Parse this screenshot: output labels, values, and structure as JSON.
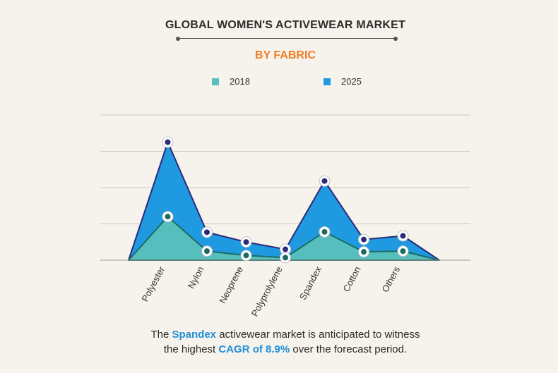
{
  "colors": {
    "series_2018": "#56bfbe",
    "series_2025": "#1f9ae0",
    "line_2018": "#1b6b62",
    "line_2025": "#2c2a7a",
    "title": "#2c2c2c",
    "subtitle": "#ef7c22",
    "highlight": "#1f8fd8"
  },
  "chart_data": {
    "type": "area",
    "title": "GLOBAL WOMEN'S ACTIVEWEAR MARKET",
    "subtitle": "BY FABRIC",
    "categories": [
      "Polyester",
      "Nylon",
      "Neoprene",
      "Polyprolylene",
      "Spandex",
      "Cotton",
      "Others"
    ],
    "series": [
      {
        "name": "2018",
        "values": [
          1.2,
          0.25,
          0.13,
          0.07,
          0.78,
          0.23,
          0.25
        ]
      },
      {
        "name": "2025",
        "values": [
          3.25,
          0.77,
          0.5,
          0.3,
          2.18,
          0.57,
          0.67
        ]
      }
    ],
    "ylim": [
      0,
      4
    ],
    "grid": true,
    "y_tick_labels": false,
    "legend_position": "top"
  },
  "caption": {
    "p1": "The ",
    "h1": "Spandex",
    "p2": " activewear market is anticipated to witness",
    "p3": "the highest ",
    "h2": "CAGR of 8.9%",
    "p4": " over the forecast period."
  }
}
